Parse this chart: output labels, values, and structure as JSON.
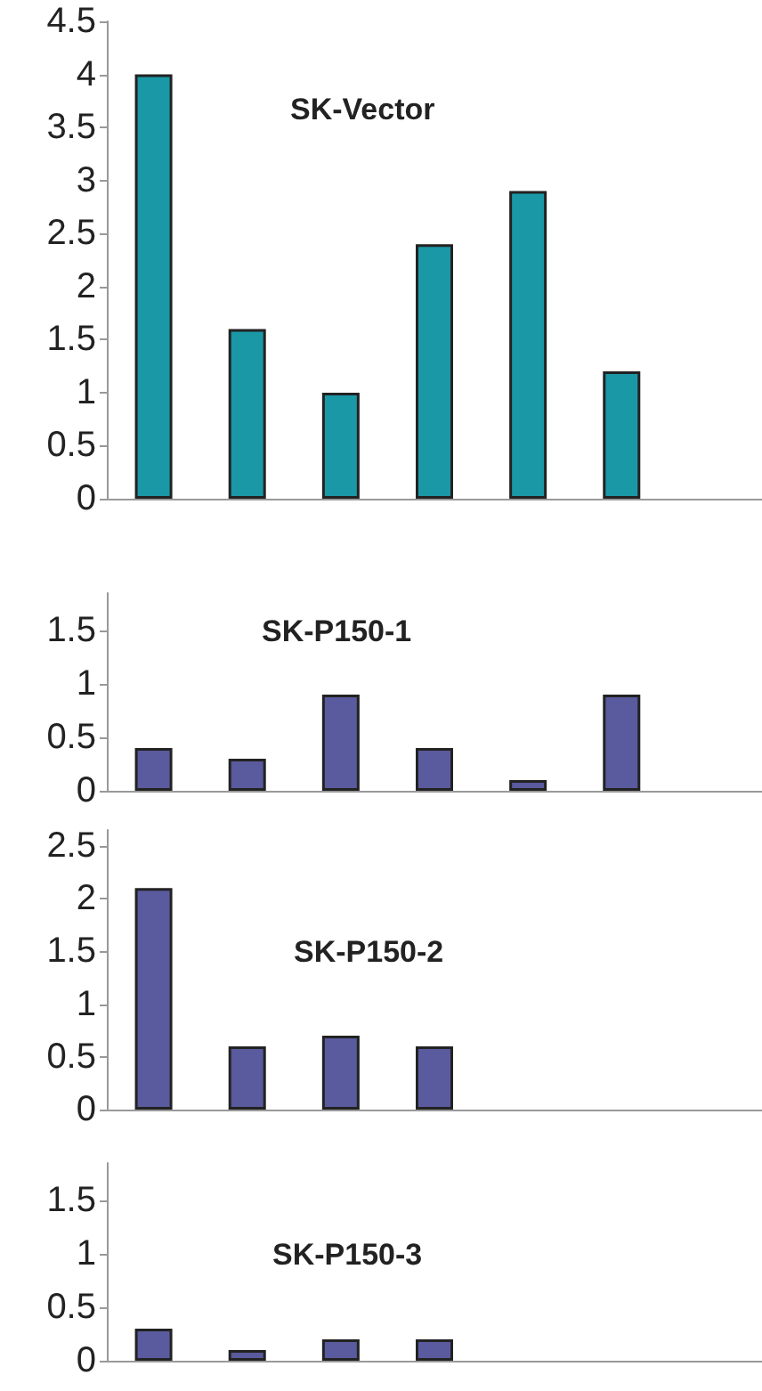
{
  "chart_data": [
    {
      "type": "bar",
      "title": "SK-Vector",
      "categories": [
        null,
        null,
        null,
        null,
        null,
        null,
        null
      ],
      "values": [
        4,
        1.6,
        1.0,
        2.4,
        2.9,
        1.2,
        null
      ],
      "color": "#1a98a6",
      "ylim": [
        0,
        4.5
      ],
      "yticks": [
        0,
        0.5,
        1,
        1.5,
        2,
        2.5,
        3,
        3.5,
        4,
        4.5
      ],
      "grid": false,
      "tick_labels": "y"
    },
    {
      "type": "bar",
      "title": "SK-P150-1",
      "categories": [
        null,
        null,
        null,
        null,
        null,
        null,
        null
      ],
      "values": [
        0.4,
        0.3,
        0.9,
        0.4,
        0.1,
        0.9,
        null
      ],
      "color": "#5a5a9e",
      "ylim": [
        0,
        1.85
      ],
      "yticks": [
        0,
        0.5,
        1,
        1.5
      ],
      "grid": false,
      "tick_labels": "y"
    },
    {
      "type": "bar",
      "title": "SK-P150-2",
      "categories": [
        null,
        null,
        null,
        null,
        null,
        null,
        null
      ],
      "values": [
        2.1,
        0.6,
        0.7,
        0.6,
        null,
        null,
        null
      ],
      "color": "#5a5a9e",
      "ylim": [
        0,
        2.65
      ],
      "yticks": [
        0,
        0.5,
        1,
        1.5,
        2,
        2.5
      ],
      "grid": false,
      "tick_labels": "y"
    },
    {
      "type": "bar",
      "title": "SK-P150-3",
      "categories": [
        null,
        null,
        null,
        null,
        null,
        null,
        null
      ],
      "values": [
        0.3,
        0.1,
        0.2,
        0.2,
        null,
        null,
        null
      ],
      "color": "#5a5a9e",
      "ylim": [
        0,
        1.85
      ],
      "yticks": [
        0,
        0.5,
        1,
        1.5
      ],
      "grid": false,
      "tick_labels": "y"
    }
  ]
}
